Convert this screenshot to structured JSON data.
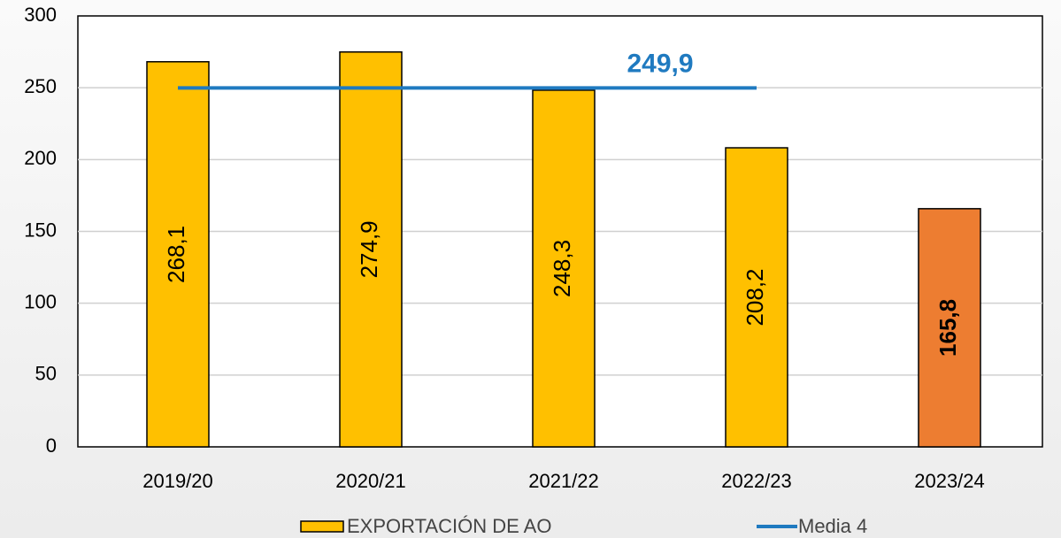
{
  "chart_data": {
    "type": "bar",
    "categories": [
      "2019/20",
      "2020/21",
      "2021/22",
      "2022/23",
      "2023/24"
    ],
    "series": [
      {
        "name": "EXPORTACIÓN DE AO",
        "color": "#ffc000",
        "colors": [
          "#ffc000",
          "#ffc000",
          "#ffc000",
          "#ffc000",
          "#ed7d31"
        ],
        "values": [
          268.1,
          274.9,
          248.3,
          208.2,
          165.8
        ],
        "value_labels": [
          "268,1",
          "274,9",
          "248,3",
          "208,2",
          "165,8"
        ]
      },
      {
        "name": "Media 4",
        "type": "line",
        "color": "#1f7ac0",
        "values": [
          249.9,
          249.9,
          249.9,
          249.9,
          null
        ],
        "label": "249,9"
      }
    ],
    "ylim": [
      0,
      300
    ],
    "yticks": [
      0,
      50,
      100,
      150,
      200,
      250,
      300
    ],
    "grid": true,
    "legend": "bottom"
  }
}
